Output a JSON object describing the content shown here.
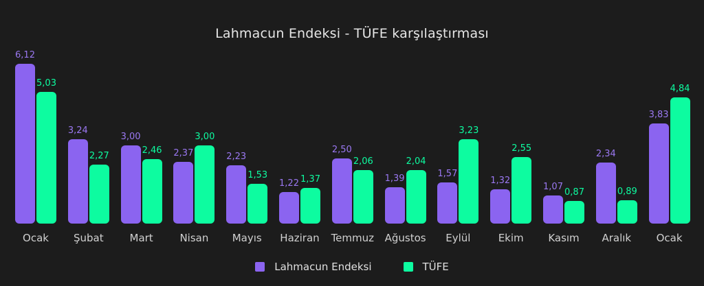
{
  "chart_data": {
    "type": "bar",
    "title": "Lahmacun Endeksi - TÜFE karşılaştırması",
    "xlabel": "",
    "ylabel": "",
    "grid": false,
    "legend_position": "bottom",
    "categories": [
      "Ocak",
      "Şubat",
      "Mart",
      "Nisan",
      "Mayıs",
      "Haziran",
      "Temmuz",
      "Ağustos",
      "Eylül",
      "Ekim",
      "Kasım",
      "Aralık",
      "Ocak"
    ],
    "series": [
      {
        "name": "Lahmacun Endeksi",
        "color": "#8b64f0",
        "values": [
          6.12,
          3.24,
          3.0,
          2.37,
          2.23,
          1.22,
          2.5,
          1.39,
          1.57,
          1.32,
          1.07,
          2.34,
          3.83
        ],
        "labels": [
          "6,12",
          "3,24",
          "3,00",
          "2,37",
          "2,23",
          "1,22",
          "2,50",
          "1,39",
          "1,57",
          "1,32",
          "1,07",
          "2,34",
          "3,83"
        ]
      },
      {
        "name": "TÜFE",
        "color": "#0dfca0",
        "values": [
          5.03,
          2.27,
          2.46,
          3.0,
          1.53,
          1.37,
          2.06,
          2.04,
          3.23,
          2.55,
          0.87,
          0.89,
          4.84
        ],
        "labels": [
          "5,03",
          "2,27",
          "2,46",
          "3,00",
          "1,53",
          "1,37",
          "2,06",
          "2,04",
          "3,23",
          "2,55",
          "0,87",
          "0,89",
          "4,84"
        ]
      }
    ],
    "ylim": [
      0,
      6.5
    ]
  },
  "legend": {
    "items": [
      {
        "label": "Lahmacun Endeksi",
        "color": "#8b64f0"
      },
      {
        "label": "TÜFE",
        "color": "#0dfca0"
      }
    ]
  }
}
